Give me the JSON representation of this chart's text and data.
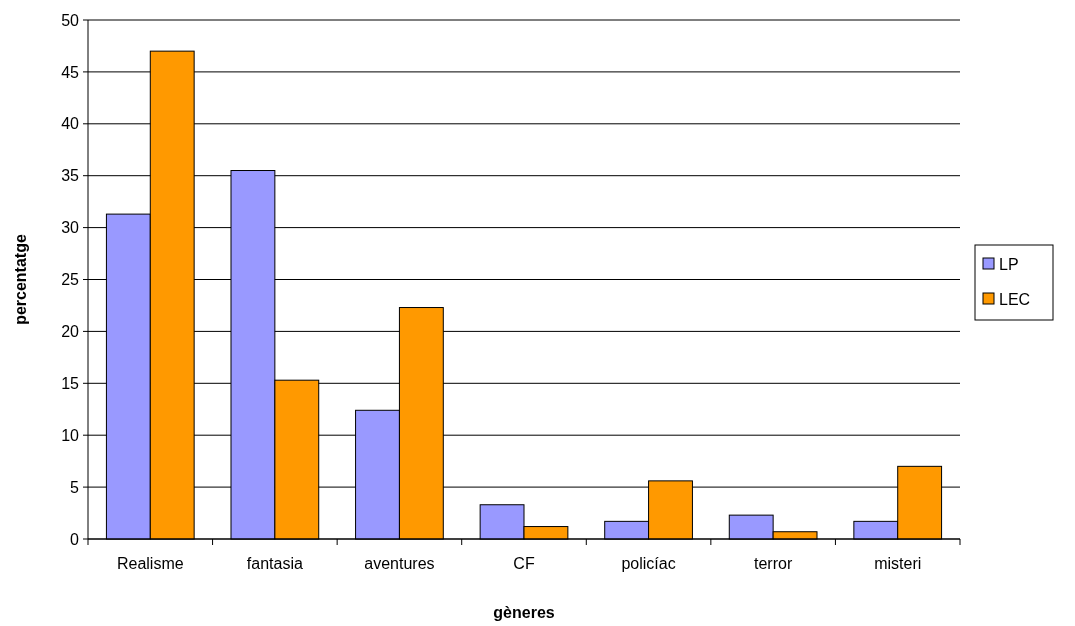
{
  "chart_data": {
    "type": "bar",
    "xlabel": "gèneres",
    "ylabel": "percentatge",
    "categories": [
      "Realisme",
      "fantasia",
      "aventures",
      "CF",
      "policíac",
      "terror",
      "misteri"
    ],
    "series": [
      {
        "name": "LP",
        "color": "#9999ff",
        "values": [
          31.3,
          35.5,
          12.4,
          3.3,
          1.7,
          2.3,
          1.7
        ]
      },
      {
        "name": "LEC",
        "color": "#ff9900",
        "values": [
          47.0,
          15.3,
          22.3,
          1.2,
          5.6,
          0.7,
          7.0
        ]
      }
    ],
    "ylim": [
      0,
      50
    ],
    "yticks": [
      0,
      5,
      10,
      15,
      20,
      25,
      30,
      35,
      40,
      45,
      50
    ],
    "grid": "y",
    "legend": "right"
  }
}
